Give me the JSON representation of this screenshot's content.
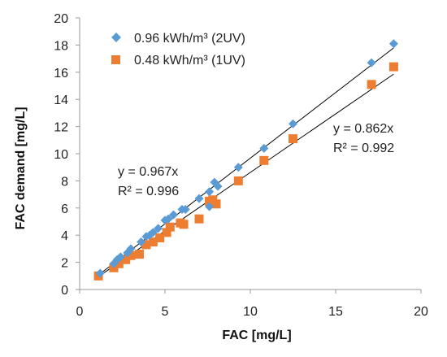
{
  "chart_data": {
    "type": "scatter",
    "xlabel": "FAC [mg/L]",
    "ylabel": "FAC demand [mg/L]",
    "xlim": [
      0,
      20
    ],
    "ylim": [
      0,
      20
    ],
    "xticks": [
      0,
      5,
      10,
      15,
      20
    ],
    "yticks": [
      0,
      2,
      4,
      6,
      8,
      10,
      12,
      14,
      16,
      18,
      20
    ],
    "grid": false,
    "legend_position": "top-left",
    "series": [
      {
        "name": "0.96 kWh/m³ (2UV)",
        "marker": "diamond",
        "color": "#5b9bd5",
        "x": [
          1.2,
          2.0,
          2.2,
          2.4,
          2.8,
          3.0,
          3.6,
          3.9,
          4.1,
          4.3,
          4.6,
          5.0,
          5.2,
          5.5,
          6.0,
          6.2,
          7.0,
          7.6,
          7.6,
          7.9,
          8.1,
          9.3,
          10.8,
          12.5,
          17.1,
          18.4
        ],
        "y": [
          1.2,
          1.9,
          2.2,
          2.4,
          2.7,
          3.0,
          3.5,
          3.9,
          4.0,
          4.2,
          4.5,
          5.1,
          5.2,
          5.5,
          5.9,
          5.9,
          6.7,
          7.2,
          6.1,
          7.9,
          7.6,
          9.0,
          10.4,
          12.2,
          16.7,
          18.1
        ]
      },
      {
        "name": "0.48 kWh/m³ (1UV)",
        "marker": "square",
        "color": "#ed7d31",
        "x": [
          1.1,
          2.0,
          2.3,
          2.7,
          3.0,
          3.5,
          3.9,
          4.3,
          4.7,
          5.1,
          5.3,
          5.9,
          6.1,
          7.0,
          7.6,
          7.8,
          8.0,
          9.3,
          10.8,
          12.5,
          17.1,
          18.4
        ],
        "y": [
          1.0,
          1.6,
          1.9,
          2.2,
          2.5,
          2.6,
          3.3,
          3.5,
          3.8,
          4.2,
          4.6,
          4.9,
          4.8,
          5.2,
          6.5,
          6.6,
          6.3,
          8.0,
          9.5,
          11.1,
          15.1,
          16.4
        ]
      }
    ],
    "trendlines": [
      {
        "series": "0.96 kWh/m³ (2UV)",
        "slope": 0.967,
        "x_range": [
          1.2,
          18.4
        ],
        "equation": "y = 0.967x",
        "r2": "R² = 0.996"
      },
      {
        "series": "0.48 kWh/m³ (1UV)",
        "slope": 0.862,
        "x_range": [
          1.2,
          18.4
        ],
        "equation": "y = 0.862x",
        "r2": "R² = 0.992"
      }
    ]
  }
}
